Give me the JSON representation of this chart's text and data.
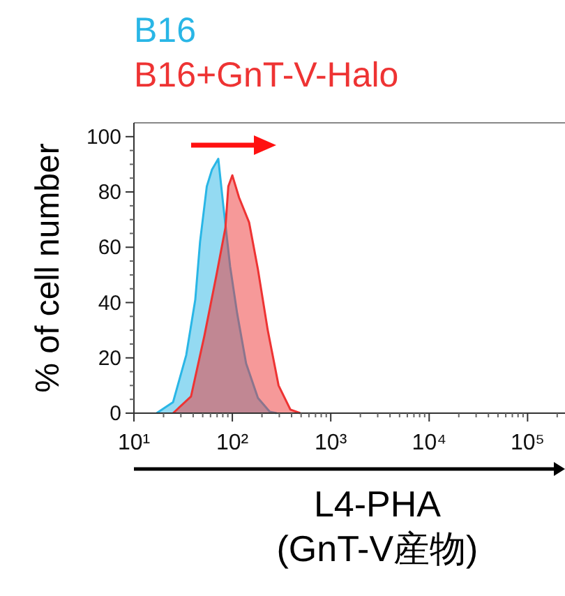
{
  "chart_data": {
    "type": "area",
    "legend": "top left",
    "log": "x",
    "xlabel": "L4-PHA\n(GnT-V産物)",
    "ylabel": "% of cell number",
    "xlim": [
      10,
      240000
    ],
    "xticks": [
      {
        "value": 10,
        "label": "10¹"
      },
      {
        "value": 100,
        "label": "10²"
      },
      {
        "value": 1000,
        "label": "10³"
      },
      {
        "value": 10000,
        "label": "10⁴"
      },
      {
        "value": 100000,
        "label": "10⁵"
      }
    ],
    "ylim": [
      0,
      105
    ],
    "yticks": [
      0,
      20,
      40,
      60,
      80,
      100
    ],
    "series": [
      {
        "name": "B16",
        "color": "#29b6e6",
        "x": [
          17,
          25,
          34,
          42,
          47,
          55,
          62,
          72,
          81,
          95,
          112,
          138,
          182,
          240,
          282
        ],
        "values": [
          0,
          4,
          21,
          41,
          62,
          82,
          88,
          92,
          75,
          53,
          36,
          18,
          5.5,
          0.5,
          0
        ]
      },
      {
        "name": "B16+GnT-V-Halo",
        "color": "#ee3333",
        "x": [
          25,
          38,
          52,
          69,
          85,
          91,
          100,
          117,
          148,
          182,
          229,
          295,
          389,
          490
        ],
        "values": [
          0,
          6,
          28,
          50,
          67,
          82,
          86,
          78,
          69,
          52,
          30,
          10,
          1.3,
          0
        ]
      }
    ]
  }
}
